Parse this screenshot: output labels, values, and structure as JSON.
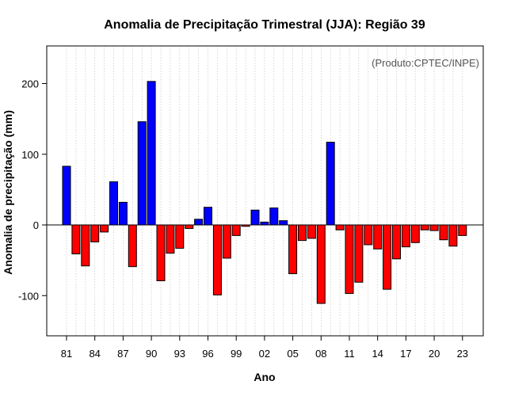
{
  "chart_data": {
    "type": "bar",
    "title": "Anomalia de Precipitação Trimestral (JJA): Região 39",
    "xlabel": "Ano",
    "ylabel": "Anomalia de precipitação (mm)",
    "annotation": "(Produto:CPTEC/INPE)",
    "ylim": [
      -160,
      255
    ],
    "yticks": [
      -100,
      0,
      100,
      200
    ],
    "ytick_labels": [
      "-100",
      "0",
      "100",
      "200"
    ],
    "xtick_labels": [
      "81",
      "84",
      "87",
      "90",
      "93",
      "96",
      "99",
      "02",
      "05",
      "08",
      "11",
      "14",
      "17",
      "20",
      "23"
    ],
    "xtick_years": [
      1981,
      1984,
      1987,
      1990,
      1993,
      1996,
      1999,
      2002,
      2005,
      2008,
      2011,
      2014,
      2017,
      2020,
      2023
    ],
    "positive_color": "#0000ff",
    "negative_color": "#ff0000",
    "grid": "vertical dotted lines at each year",
    "years": [
      1981,
      1982,
      1983,
      1984,
      1985,
      1986,
      1987,
      1988,
      1989,
      1990,
      1991,
      1992,
      1993,
      1994,
      1995,
      1996,
      1997,
      1998,
      1999,
      2000,
      2001,
      2002,
      2003,
      2004,
      2005,
      2006,
      2007,
      2008,
      2009,
      2010,
      2011,
      2012,
      2013,
      2014,
      2015,
      2016,
      2017,
      2018,
      2019,
      2020,
      2021,
      2022,
      2023
    ],
    "values": [
      83,
      -41,
      -58,
      -24,
      -10,
      61,
      32,
      -59,
      146,
      203,
      -79,
      -40,
      -33,
      -5,
      8,
      25,
      -99,
      -47,
      -15,
      -2,
      21,
      4,
      24,
      6,
      -69,
      -22,
      -19,
      -111,
      117,
      -7,
      -97,
      -81,
      -28,
      -34,
      -91,
      -48,
      -31,
      -25,
      -7,
      -8,
      -21,
      -30,
      -15
    ]
  }
}
